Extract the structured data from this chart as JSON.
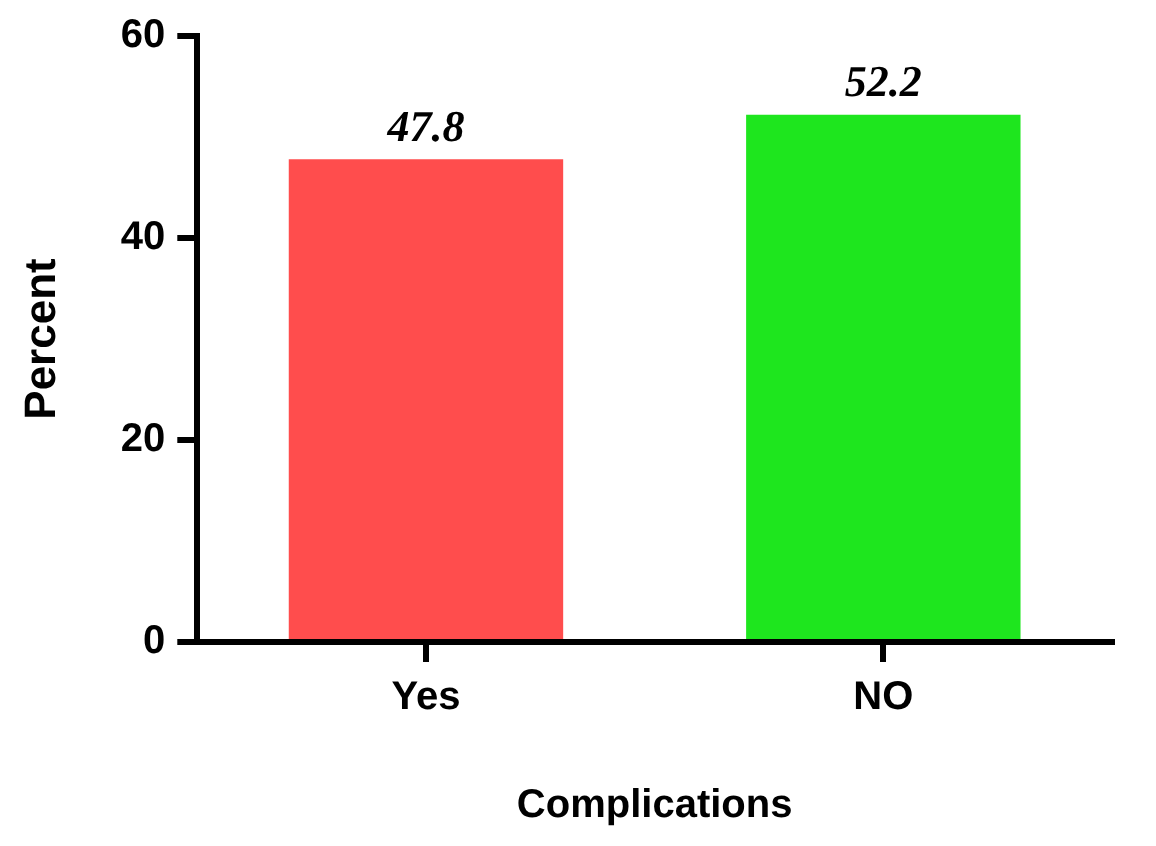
{
  "chart_data": {
    "type": "bar",
    "xlabel": "Complications",
    "ylabel": "Percent",
    "categories": [
      "Yes",
      "NO"
    ],
    "values": [
      47.8,
      52.2
    ],
    "colors": [
      "#ff4d4d",
      "#1ee61e"
    ],
    "ylim": [
      0,
      60
    ],
    "yticks": [
      0,
      20,
      40,
      60
    ],
    "grid": false,
    "legend": false,
    "data_labels": true
  }
}
